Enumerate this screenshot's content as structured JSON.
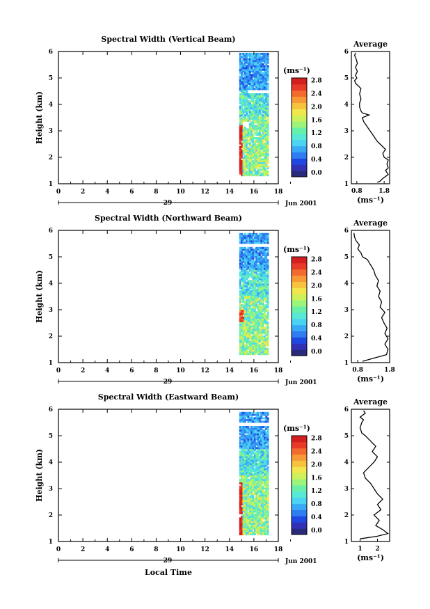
{
  "xlabel_bottom": "Local Time",
  "colorbar": {
    "unit_label": "(ms⁻¹)",
    "ticks": [
      "0.0",
      "0.4",
      "0.8",
      "1.2",
      "1.6",
      "2.0",
      "2.4",
      "2.8"
    ],
    "range": [
      0.0,
      3.0
    ],
    "colors": [
      "#2a2a7a",
      "#3131b5",
      "#1f48e0",
      "#2f7df0",
      "#3aa9f5",
      "#4bd3f3",
      "#57e8d6",
      "#68f0a8",
      "#9af57a",
      "#cdf15a",
      "#f1e64b",
      "#f7c33f",
      "#f79a36",
      "#f36a2e",
      "#e73b28",
      "#d41f1f"
    ]
  },
  "panels": [
    {
      "title": "Spectral Width (Vertical Beam)",
      "ylabel": "Height (km)",
      "x_ticks": [
        "0",
        "2",
        "4",
        "6",
        "8",
        "10",
        "12",
        "14",
        "16",
        "18"
      ],
      "y_ticks": [
        "1",
        "2",
        "3",
        "4",
        "5",
        "6"
      ],
      "date_day": "29",
      "date_label": "Jun 2001",
      "avg_title": "Average",
      "avg_xlabel": "(ms⁻¹)",
      "avg_xticks": [
        "0.8",
        "1.8"
      ],
      "avg_xlim": [
        0.6,
        2.0
      ],
      "avg_profile": [
        [
          1.05,
          1.55
        ],
        [
          1.1,
          1.65
        ],
        [
          1.2,
          1.75
        ],
        [
          1.35,
          1.95
        ],
        [
          1.5,
          1.85
        ],
        [
          1.6,
          1.95
        ],
        [
          1.75,
          1.9
        ],
        [
          1.9,
          1.95
        ],
        [
          2.0,
          1.8
        ],
        [
          2.15,
          1.75
        ],
        [
          2.3,
          1.85
        ],
        [
          2.45,
          1.7
        ],
        [
          2.6,
          1.55
        ],
        [
          2.75,
          1.45
        ],
        [
          2.9,
          1.35
        ],
        [
          3.05,
          1.25
        ],
        [
          3.2,
          1.15
        ],
        [
          3.35,
          1.05
        ],
        [
          3.5,
          1.0
        ],
        [
          3.6,
          1.25
        ],
        [
          3.68,
          1.0
        ],
        [
          3.75,
          0.95
        ],
        [
          3.9,
          0.9
        ],
        [
          4.05,
          0.9
        ],
        [
          4.2,
          0.95
        ],
        [
          4.4,
          0.9
        ],
        [
          4.6,
          0.95
        ],
        [
          4.8,
          0.75
        ],
        [
          4.9,
          0.72
        ],
        [
          5.0,
          0.8
        ],
        [
          5.1,
          0.75
        ],
        [
          5.25,
          0.82
        ],
        [
          5.4,
          0.75
        ],
        [
          5.55,
          0.82
        ],
        [
          5.7,
          0.78
        ],
        [
          5.85,
          0.72
        ],
        [
          5.95,
          0.75
        ]
      ]
    },
    {
      "title": "Spectral Width (Northward Beam)",
      "ylabel": "Height (km)",
      "x_ticks": [
        "0",
        "2",
        "4",
        "6",
        "8",
        "10",
        "12",
        "14",
        "16",
        "18"
      ],
      "y_ticks": [
        "1",
        "2",
        "3",
        "4",
        "5",
        "6"
      ],
      "date_day": "29",
      "date_label": "Jun 2001",
      "avg_title": "Average",
      "avg_xlabel": "(ms⁻¹)",
      "avg_xticks": [
        "0.8",
        "1.8"
      ],
      "avg_xlim": [
        0.6,
        1.8
      ],
      "avg_profile": [
        [
          1.05,
          0.95
        ],
        [
          1.15,
          1.25
        ],
        [
          1.3,
          1.7
        ],
        [
          1.5,
          1.75
        ],
        [
          1.7,
          1.65
        ],
        [
          1.9,
          1.75
        ],
        [
          2.1,
          1.65
        ],
        [
          2.3,
          1.72
        ],
        [
          2.5,
          1.62
        ],
        [
          2.7,
          1.55
        ],
        [
          2.9,
          1.65
        ],
        [
          3.1,
          1.5
        ],
        [
          3.3,
          1.55
        ],
        [
          3.5,
          1.45
        ],
        [
          3.7,
          1.5
        ],
        [
          3.9,
          1.4
        ],
        [
          4.1,
          1.45
        ],
        [
          4.3,
          1.35
        ],
        [
          4.5,
          1.3
        ],
        [
          4.7,
          1.2
        ],
        [
          4.9,
          1.1
        ],
        [
          5.0,
          0.95
        ],
        [
          5.15,
          0.9
        ],
        [
          5.3,
          0.8
        ],
        [
          5.45,
          0.85
        ],
        [
          5.6,
          0.75
        ],
        [
          5.75,
          0.7
        ],
        [
          5.9,
          0.68
        ]
      ]
    },
    {
      "title": "Spectral Width (Eastward Beam)",
      "ylabel": "Height (km)",
      "x_ticks": [
        "0",
        "2",
        "4",
        "6",
        "8",
        "10",
        "12",
        "14",
        "16",
        "18"
      ],
      "y_ticks": [
        "1",
        "2",
        "3",
        "4",
        "5",
        "6"
      ],
      "date_day": "29",
      "date_label": "Jun 2001",
      "avg_title": "Average",
      "avg_xlabel": "(ms⁻¹)",
      "avg_xticks": [
        "1",
        "2"
      ],
      "avg_xlim": [
        0.5,
        2.7
      ],
      "avg_profile": [
        [
          1.1,
          1.0
        ],
        [
          1.2,
          2.0
        ],
        [
          1.3,
          2.6
        ],
        [
          1.45,
          2.3
        ],
        [
          1.6,
          1.9
        ],
        [
          1.8,
          2.1
        ],
        [
          2.0,
          1.8
        ],
        [
          2.2,
          2.2
        ],
        [
          2.4,
          2.0
        ],
        [
          2.6,
          2.3
        ],
        [
          2.8,
          2.0
        ],
        [
          3.0,
          1.8
        ],
        [
          3.2,
          1.6
        ],
        [
          3.4,
          1.3
        ],
        [
          3.6,
          1.2
        ],
        [
          3.8,
          1.5
        ],
        [
          4.0,
          1.8
        ],
        [
          4.2,
          2.0
        ],
        [
          4.4,
          1.7
        ],
        [
          4.6,
          1.9
        ],
        [
          4.8,
          1.6
        ],
        [
          5.0,
          1.3
        ],
        [
          5.1,
          1.1
        ],
        [
          5.3,
          1.0
        ],
        [
          5.5,
          1.1
        ],
        [
          5.6,
          1.2
        ],
        [
          5.7,
          1.0
        ],
        [
          5.85,
          1.3
        ],
        [
          5.95,
          1.2
        ]
      ]
    }
  ]
}
